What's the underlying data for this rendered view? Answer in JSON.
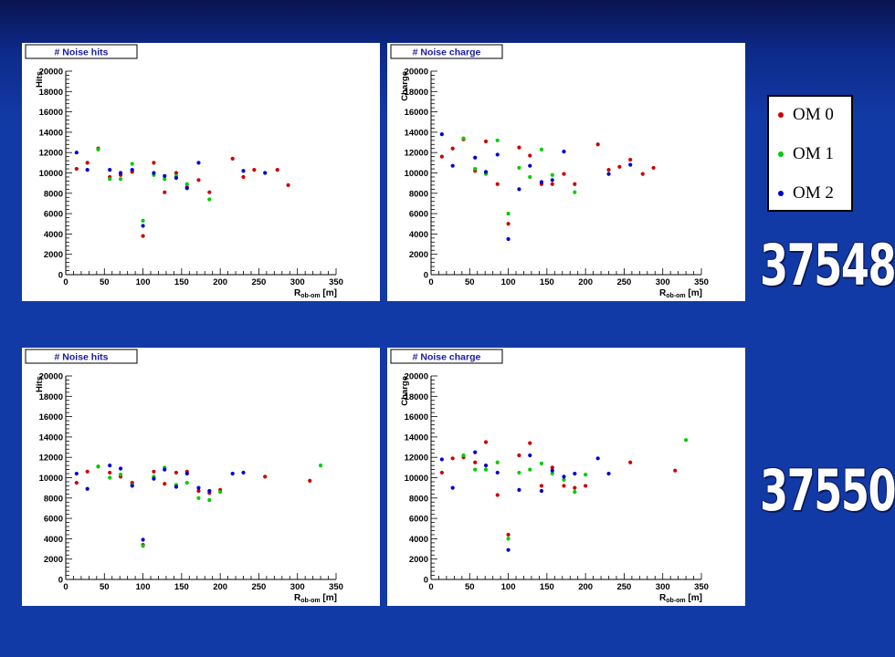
{
  "legend": {
    "items": [
      {
        "label": "OM 0",
        "color": "#cc0000"
      },
      {
        "label": "OM 1",
        "color": "#00cc00"
      },
      {
        "label": "OM 2",
        "color": "#0000cc"
      }
    ]
  },
  "runs": [
    "37548",
    "37550"
  ],
  "colors": {
    "OM0": "#cc0000",
    "OM1": "#00cc00",
    "OM2": "#0000cc"
  },
  "chart_data": [
    {
      "type": "scatter",
      "title": "# Noise hits",
      "xlabel": "R_ob-om [m]",
      "ylabel": "Hits",
      "xlim": [
        0,
        350
      ],
      "ylim": [
        0,
        20000
      ],
      "xticks": [
        "0",
        "50",
        "100",
        "150",
        "200",
        "250",
        "300",
        "350"
      ],
      "yticks": [
        "0",
        "2000",
        "4000",
        "6000",
        "8000",
        "10000",
        "12000",
        "14000",
        "16000",
        "18000",
        "20000"
      ],
      "series": [
        {
          "name": "OM 0",
          "color": "#cc0000",
          "points": [
            [
              14,
              10400
            ],
            [
              28,
              11000
            ],
            [
              42,
              12400
            ],
            [
              57,
              9600
            ],
            [
              71,
              9800
            ],
            [
              86,
              10100
            ],
            [
              100,
              3800
            ],
            [
              114,
              11000
            ],
            [
              128,
              8100
            ],
            [
              143,
              10000
            ],
            [
              157,
              8600
            ],
            [
              172,
              9300
            ],
            [
              186,
              8100
            ],
            [
              216,
              11400
            ],
            [
              230,
              9600
            ],
            [
              244,
              10300
            ],
            [
              274,
              10300
            ],
            [
              288,
              8800
            ]
          ]
        },
        {
          "name": "OM 1",
          "color": "#00cc00",
          "points": [
            [
              42,
              12300
            ],
            [
              57,
              9400
            ],
            [
              71,
              9400
            ],
            [
              86,
              10900
            ],
            [
              100,
              5300
            ],
            [
              114,
              9800
            ],
            [
              128,
              9400
            ],
            [
              143,
              9700
            ],
            [
              157,
              8900
            ],
            [
              186,
              7400
            ]
          ]
        },
        {
          "name": "OM 2",
          "color": "#0000cc",
          "points": [
            [
              14,
              12000
            ],
            [
              28,
              10300
            ],
            [
              57,
              10300
            ],
            [
              71,
              10000
            ],
            [
              86,
              10300
            ],
            [
              100,
              4800
            ],
            [
              114,
              10000
            ],
            [
              128,
              9700
            ],
            [
              143,
              9500
            ],
            [
              157,
              8500
            ],
            [
              172,
              11000
            ],
            [
              230,
              10200
            ],
            [
              258,
              10000
            ]
          ]
        }
      ]
    },
    {
      "type": "scatter",
      "title": "# Noise charge",
      "xlabel": "R_ob-om [m]",
      "ylabel": "Charge",
      "xlim": [
        0,
        350
      ],
      "ylim": [
        0,
        20000
      ],
      "xticks": [
        "0",
        "50",
        "100",
        "150",
        "200",
        "250",
        "300",
        "350"
      ],
      "yticks": [
        "0",
        "2000",
        "4000",
        "6000",
        "8000",
        "10000",
        "12000",
        "14000",
        "16000",
        "18000",
        "20000"
      ],
      "series": [
        {
          "name": "OM 0",
          "color": "#cc0000",
          "points": [
            [
              14,
              11600
            ],
            [
              28,
              12400
            ],
            [
              42,
              13300
            ],
            [
              57,
              10200
            ],
            [
              71,
              13100
            ],
            [
              86,
              8900
            ],
            [
              100,
              5000
            ],
            [
              114,
              12500
            ],
            [
              128,
              11700
            ],
            [
              143,
              8900
            ],
            [
              157,
              8900
            ],
            [
              172,
              9900
            ],
            [
              186,
              8900
            ],
            [
              216,
              12800
            ],
            [
              230,
              10300
            ],
            [
              244,
              10600
            ],
            [
              258,
              11300
            ],
            [
              274,
              9900
            ],
            [
              288,
              10500
            ]
          ]
        },
        {
          "name": "OM 1",
          "color": "#00cc00",
          "points": [
            [
              42,
              13400
            ],
            [
              57,
              10400
            ],
            [
              71,
              9900
            ],
            [
              86,
              13200
            ],
            [
              100,
              6000
            ],
            [
              114,
              10500
            ],
            [
              128,
              9600
            ],
            [
              143,
              12300
            ],
            [
              157,
              9800
            ],
            [
              186,
              8100
            ]
          ]
        },
        {
          "name": "OM 2",
          "color": "#0000cc",
          "points": [
            [
              14,
              13800
            ],
            [
              28,
              10700
            ],
            [
              57,
              11500
            ],
            [
              71,
              10100
            ],
            [
              86,
              11800
            ],
            [
              100,
              3500
            ],
            [
              114,
              8400
            ],
            [
              128,
              10700
            ],
            [
              143,
              9100
            ],
            [
              157,
              9300
            ],
            [
              172,
              12100
            ],
            [
              230,
              9900
            ],
            [
              258,
              10800
            ]
          ]
        }
      ]
    },
    {
      "type": "scatter",
      "title": "# Noise hits",
      "xlabel": "R_ob-om [m]",
      "ylabel": "Hits",
      "xlim": [
        0,
        350
      ],
      "ylim": [
        0,
        20000
      ],
      "xticks": [
        "0",
        "50",
        "100",
        "150",
        "200",
        "250",
        "300",
        "350"
      ],
      "yticks": [
        "0",
        "2000",
        "4000",
        "6000",
        "8000",
        "10000",
        "12000",
        "14000",
        "16000",
        "18000",
        "20000"
      ],
      "series": [
        {
          "name": "OM 0",
          "color": "#cc0000",
          "points": [
            [
              14,
              9500
            ],
            [
              28,
              10600
            ],
            [
              42,
              11100
            ],
            [
              57,
              10500
            ],
            [
              71,
              10100
            ],
            [
              86,
              9500
            ],
            [
              100,
              3400
            ],
            [
              114,
              10600
            ],
            [
              128,
              9400
            ],
            [
              143,
              10500
            ],
            [
              157,
              10600
            ],
            [
              172,
              8700
            ],
            [
              186,
              8500
            ],
            [
              200,
              8800
            ],
            [
              258,
              10100
            ],
            [
              316,
              9700
            ]
          ]
        },
        {
          "name": "OM 1",
          "color": "#00cc00",
          "points": [
            [
              42,
              11100
            ],
            [
              57,
              10000
            ],
            [
              71,
              10300
            ],
            [
              86,
              9300
            ],
            [
              100,
              3300
            ],
            [
              114,
              10100
            ],
            [
              128,
              11000
            ],
            [
              143,
              9300
            ],
            [
              157,
              9500
            ],
            [
              172,
              8000
            ],
            [
              186,
              7800
            ],
            [
              200,
              8600
            ],
            [
              330,
              11200
            ]
          ]
        },
        {
          "name": "OM 2",
          "color": "#0000cc",
          "points": [
            [
              14,
              10400
            ],
            [
              28,
              8900
            ],
            [
              57,
              11200
            ],
            [
              71,
              10900
            ],
            [
              86,
              9200
            ],
            [
              100,
              3900
            ],
            [
              114,
              9900
            ],
            [
              128,
              10800
            ],
            [
              143,
              9100
            ],
            [
              157,
              10400
            ],
            [
              172,
              9000
            ],
            [
              186,
              8700
            ],
            [
              216,
              10400
            ],
            [
              230,
              10500
            ]
          ]
        }
      ]
    },
    {
      "type": "scatter",
      "title": "# Noise charge",
      "xlabel": "R_ob-om [m]",
      "ylabel": "Charge",
      "xlim": [
        0,
        350
      ],
      "ylim": [
        0,
        20000
      ],
      "xticks": [
        "0",
        "50",
        "100",
        "150",
        "200",
        "250",
        "300",
        "350"
      ],
      "yticks": [
        "0",
        "2000",
        "4000",
        "6000",
        "8000",
        "10000",
        "12000",
        "14000",
        "16000",
        "18000",
        "20000"
      ],
      "series": [
        {
          "name": "OM 0",
          "color": "#cc0000",
          "points": [
            [
              14,
              10500
            ],
            [
              28,
              11900
            ],
            [
              42,
              12000
            ],
            [
              57,
              11500
            ],
            [
              71,
              13500
            ],
            [
              86,
              8300
            ],
            [
              100,
              4400
            ],
            [
              114,
              12200
            ],
            [
              128,
              13400
            ],
            [
              143,
              9200
            ],
            [
              157,
              11000
            ],
            [
              172,
              9200
            ],
            [
              186,
              9000
            ],
            [
              200,
              9200
            ],
            [
              258,
              11500
            ],
            [
              316,
              10700
            ]
          ]
        },
        {
          "name": "OM 1",
          "color": "#00cc00",
          "points": [
            [
              42,
              12200
            ],
            [
              57,
              10800
            ],
            [
              71,
              10800
            ],
            [
              86,
              11500
            ],
            [
              100,
              4000
            ],
            [
              114,
              10500
            ],
            [
              128,
              10800
            ],
            [
              143,
              11400
            ],
            [
              157,
              10400
            ],
            [
              172,
              9800
            ],
            [
              186,
              8600
            ],
            [
              200,
              10300
            ],
            [
              330,
              13700
            ]
          ]
        },
        {
          "name": "OM 2",
          "color": "#0000cc",
          "points": [
            [
              14,
              11800
            ],
            [
              28,
              9000
            ],
            [
              57,
              12500
            ],
            [
              71,
              11200
            ],
            [
              86,
              10500
            ],
            [
              100,
              2900
            ],
            [
              114,
              8800
            ],
            [
              128,
              12200
            ],
            [
              143,
              8700
            ],
            [
              157,
              10700
            ],
            [
              172,
              10100
            ],
            [
              186,
              10400
            ],
            [
              216,
              11900
            ],
            [
              230,
              10400
            ]
          ]
        }
      ]
    }
  ]
}
